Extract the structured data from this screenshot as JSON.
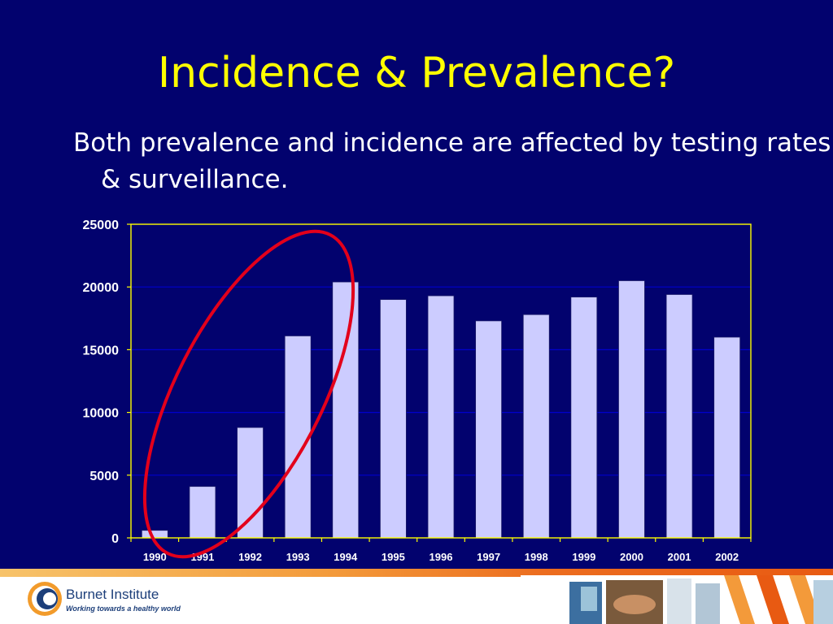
{
  "slide": {
    "title": "Incidence & Prevalence?",
    "body": "Both prevalence and incidence are affected by testing rates & surveillance."
  },
  "colors": {
    "background": "#02026e",
    "title": "#ffff00",
    "text": "#ffffff",
    "bar_fill": "#ccccff",
    "gridline": "#0000cc",
    "plot_border": "#ffff00",
    "highlight_ellipse": "#e3001b"
  },
  "chart_data": {
    "type": "bar",
    "categories": [
      "1990",
      "1991",
      "1992",
      "1993",
      "1994",
      "1995",
      "1996",
      "1997",
      "1998",
      "1999",
      "2000",
      "2001",
      "2002"
    ],
    "values": [
      600,
      4100,
      8800,
      16100,
      20400,
      19000,
      19300,
      17300,
      17800,
      19200,
      20500,
      19400,
      16000
    ],
    "title": "",
    "xlabel": "",
    "ylabel": "",
    "ylim": [
      0,
      25000
    ],
    "yticks": [
      0,
      5000,
      10000,
      15000,
      20000,
      25000
    ],
    "grid": true,
    "legend": "none",
    "annotation": "red ellipse highlighting 1990-1994"
  },
  "footer": {
    "logo_name": "Burnet Institute",
    "logo_tagline": "Working towards a healthy world",
    "logo_icon": "burnet-logo-icon"
  }
}
